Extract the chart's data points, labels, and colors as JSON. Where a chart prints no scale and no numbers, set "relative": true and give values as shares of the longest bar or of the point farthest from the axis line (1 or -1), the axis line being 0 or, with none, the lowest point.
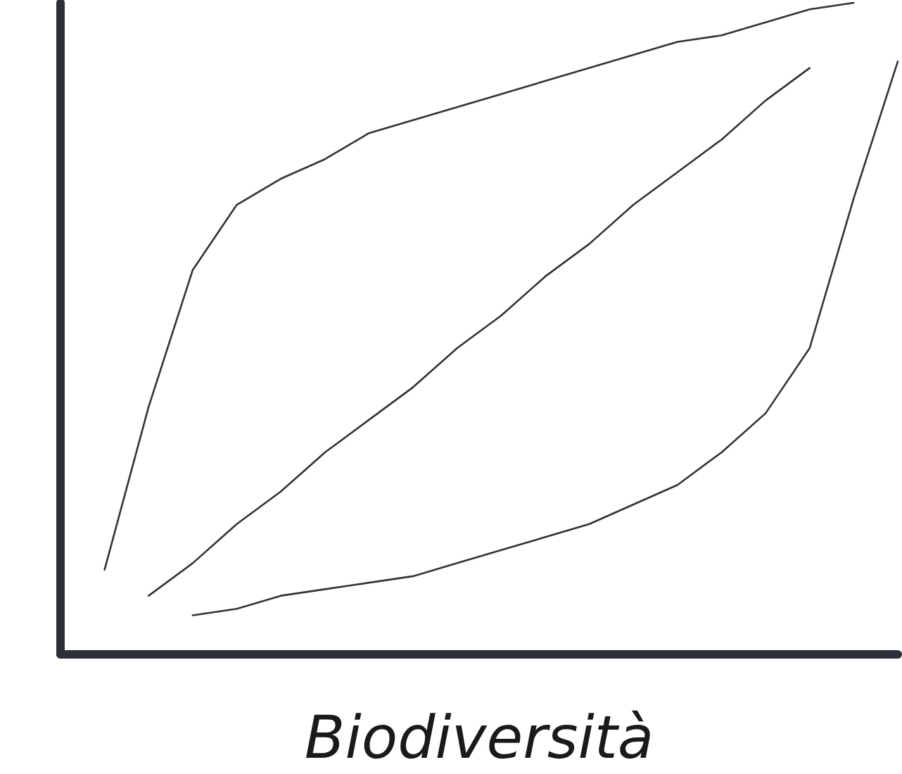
{
  "chart_data": {
    "type": "line",
    "relative": true,
    "xlabel": "Biodiversità",
    "marker": "none",
    "line_style": "solid",
    "categories": [
      null,
      null,
      null,
      null,
      null,
      null,
      null,
      null,
      null,
      null,
      null,
      null,
      null,
      null,
      null,
      null,
      null,
      null,
      null,
      null
    ],
    "series": [
      {
        "color": "#333333",
        "values": [
          null,
          0.13,
          0.38,
          0.59,
          0.69,
          0.73,
          0.76,
          0.8,
          0.82,
          0.84,
          0.86,
          0.88,
          0.9,
          0.92,
          0.94,
          0.95,
          0.97,
          0.99,
          1.0,
          null
        ]
      },
      {
        "color": "#333333",
        "values": [
          null,
          null,
          0.09,
          0.14,
          0.2,
          0.25,
          0.31,
          0.36,
          0.41,
          0.47,
          0.52,
          0.58,
          0.63,
          0.69,
          0.74,
          0.79,
          0.85,
          0.9,
          null,
          null
        ]
      },
      {
        "color": "#333333",
        "values": [
          null,
          null,
          null,
          0.06,
          0.07,
          0.09,
          0.1,
          0.11,
          0.12,
          0.14,
          0.16,
          0.18,
          0.2,
          0.23,
          0.26,
          0.31,
          0.37,
          0.47,
          0.7,
          0.91
        ]
      }
    ]
  }
}
